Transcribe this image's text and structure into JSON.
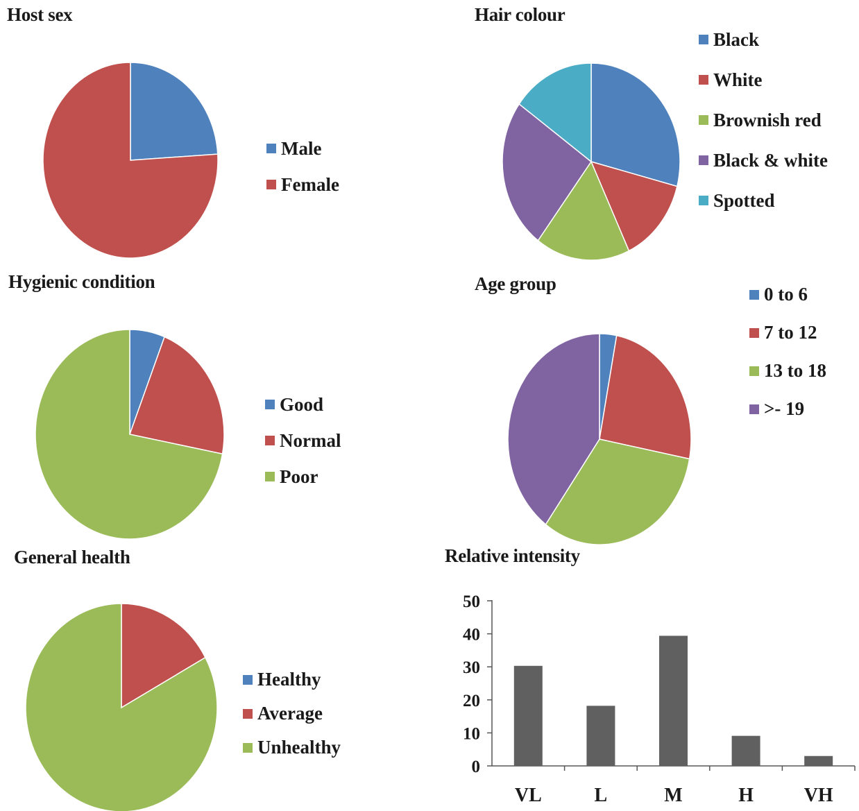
{
  "chart_data": [
    {
      "type": "pie",
      "title": "Host sex",
      "categories": [
        "Male",
        "Female"
      ],
      "values": [
        24,
        76
      ],
      "colors": [
        "#4f81bd",
        "#c0504d"
      ],
      "legend_position": "right"
    },
    {
      "type": "pie",
      "title": "Hair colour",
      "categories": [
        "Black",
        "White",
        "Brownish red",
        "Black & white",
        "Spotted"
      ],
      "values": [
        27,
        13,
        16,
        23,
        14
      ],
      "colors": [
        "#4f81bd",
        "#c0504d",
        "#9bbb59",
        "#8064a2",
        "#4bacc6"
      ],
      "legend_position": "right"
    },
    {
      "type": "pie",
      "title": "Hygienic condition",
      "categories": [
        "Good",
        "Normal",
        "Poor"
      ],
      "values": [
        6,
        22,
        72
      ],
      "colors": [
        "#4f81bd",
        "#c0504d",
        "#9bbb59"
      ],
      "legend_position": "right"
    },
    {
      "type": "pie",
      "title": "Age group",
      "categories": [
        "0 to 6",
        "7 to 12",
        "13 to 18",
        ">- 19"
      ],
      "values": [
        3,
        25,
        32,
        40
      ],
      "colors": [
        "#4f81bd",
        "#c0504d",
        "#9bbb59",
        "#8064a2"
      ],
      "legend_position": "top-right"
    },
    {
      "type": "pie",
      "title": "General health",
      "categories": [
        "Healthy",
        "Average",
        "Unhealthy"
      ],
      "values": [
        0,
        17,
        83
      ],
      "colors": [
        "#4f81bd",
        "#c0504d",
        "#9bbb59"
      ],
      "legend_position": "right"
    },
    {
      "type": "bar",
      "title": "Relative intensity",
      "categories": [
        "VL",
        "L",
        "M",
        "H",
        "VH"
      ],
      "values": [
        30.3,
        18.2,
        39.4,
        9.1,
        3
      ],
      "ylim": [
        0,
        50
      ],
      "yticks": [
        "0",
        "10",
        "20",
        "30",
        "40",
        "50"
      ],
      "bar_color": "#606060",
      "grid": false
    }
  ]
}
